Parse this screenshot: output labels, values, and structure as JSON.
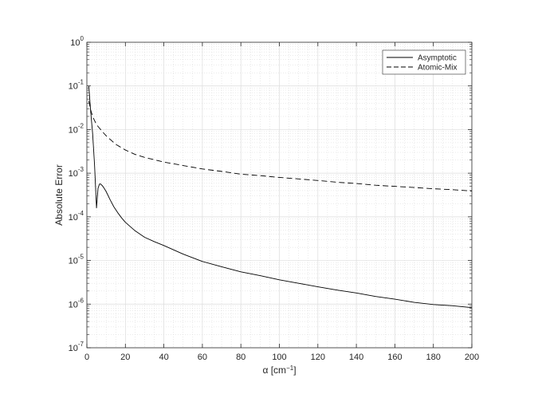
{
  "chart_data": {
    "type": "line",
    "xlabel_symbol": "α",
    "xlabel_unit_text": " [cm",
    "xlabel_unit_exp": "−1",
    "xlabel_unit_close": "]",
    "ylabel": "Absolute Error",
    "xlim": [
      0,
      200
    ],
    "ylim": [
      1e-07,
      1
    ],
    "y_scale": "log",
    "grid": true,
    "minor_grid": true,
    "legend_position": "top-right",
    "x_ticks": [
      "0",
      "20",
      "40",
      "60",
      "80",
      "100",
      "120",
      "140",
      "160",
      "180",
      "200"
    ],
    "y_ticks": [
      {
        "value": 1e-07,
        "base": "10",
        "exp": "-7"
      },
      {
        "value": 1e-06,
        "base": "10",
        "exp": "-6"
      },
      {
        "value": 1e-05,
        "base": "10",
        "exp": "-5"
      },
      {
        "value": 0.0001,
        "base": "10",
        "exp": "-4"
      },
      {
        "value": 0.001,
        "base": "10",
        "exp": "-3"
      },
      {
        "value": 0.01,
        "base": "10",
        "exp": "-2"
      },
      {
        "value": 0.1,
        "base": "10",
        "exp": "-1"
      },
      {
        "value": 1,
        "base": "10",
        "exp": "0"
      }
    ],
    "series": [
      {
        "name": "Asymptotic",
        "style": "solid",
        "color": "#000000",
        "points": [
          [
            1,
            0.1
          ],
          [
            1.5,
            0.05
          ],
          [
            2,
            0.025
          ],
          [
            3,
            0.008
          ],
          [
            4,
            0.0015
          ],
          [
            5,
            0.00016
          ],
          [
            5.8,
            0.00045
          ],
          [
            6.5,
            0.00056
          ],
          [
            7,
            0.00057
          ],
          [
            8,
            0.00052
          ],
          [
            9,
            0.00045
          ],
          [
            10,
            0.00038
          ],
          [
            12,
            0.00025
          ],
          [
            14,
            0.00017
          ],
          [
            16,
            0.000125
          ],
          [
            18,
            9.5e-05
          ],
          [
            20,
            7.5e-05
          ],
          [
            25,
            4.8e-05
          ],
          [
            30,
            3.4e-05
          ],
          [
            35,
            2.7e-05
          ],
          [
            40,
            2.2e-05
          ],
          [
            50,
            1.4e-05
          ],
          [
            60,
            9.5e-06
          ],
          [
            70,
            7.2e-06
          ],
          [
            80,
            5.5e-06
          ],
          [
            90,
            4.5e-06
          ],
          [
            100,
            3.6e-06
          ],
          [
            110,
            3e-06
          ],
          [
            120,
            2.5e-06
          ],
          [
            130,
            2.1e-06
          ],
          [
            140,
            1.8e-06
          ],
          [
            150,
            1.5e-06
          ],
          [
            160,
            1.3e-06
          ],
          [
            170,
            1.1e-06
          ],
          [
            180,
            9.8e-07
          ],
          [
            190,
            9.2e-07
          ],
          [
            200,
            8.3e-07
          ]
        ]
      },
      {
        "name": "Atomic-Mix",
        "style": "dashed",
        "color": "#000000",
        "points": [
          [
            1,
            0.045
          ],
          [
            2,
            0.028
          ],
          [
            3,
            0.02
          ],
          [
            4,
            0.016
          ],
          [
            5,
            0.013
          ],
          [
            6,
            0.0115
          ],
          [
            8,
            0.009
          ],
          [
            10,
            0.0072
          ],
          [
            12,
            0.006
          ],
          [
            15,
            0.0046
          ],
          [
            20,
            0.0034
          ],
          [
            25,
            0.0027
          ],
          [
            30,
            0.0023
          ],
          [
            40,
            0.0018
          ],
          [
            50,
            0.0015
          ],
          [
            60,
            0.00125
          ],
          [
            70,
            0.0011
          ],
          [
            80,
            0.00095
          ],
          [
            90,
            0.00088
          ],
          [
            100,
            0.0008
          ],
          [
            110,
            0.00074
          ],
          [
            120,
            0.00068
          ],
          [
            130,
            0.00062
          ],
          [
            140,
            0.00058
          ],
          [
            150,
            0.00053
          ],
          [
            160,
            0.0005
          ],
          [
            170,
            0.00047
          ],
          [
            180,
            0.00044
          ],
          [
            190,
            0.00042
          ],
          [
            200,
            0.00039
          ]
        ]
      }
    ]
  }
}
